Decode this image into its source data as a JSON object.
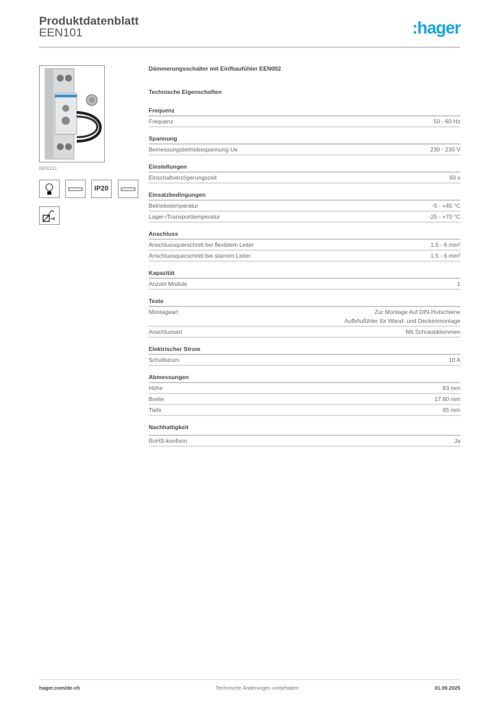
{
  "header": {
    "title": "Produktdatenblatt",
    "subtitle": "EEN101",
    "logo": ":hager",
    "logo_color": "#1aa6e0"
  },
  "product": {
    "image_label": "EEN101",
    "icons": [
      "lamp-icon",
      "din-rail-icon",
      "IP20",
      "din-rail-icon",
      "light-sensor-icon"
    ],
    "ip_rating": "IP20",
    "name": "Dämmerungsschalter mit Einfbaufühler EEN002"
  },
  "specs": {
    "title": "Technische Eigenschaften",
    "sections": [
      {
        "title": "Frequenz",
        "rows": [
          {
            "label": "Frequenz",
            "value": "50 - 60 Hz"
          }
        ]
      },
      {
        "title": "Spannung",
        "rows": [
          {
            "label": "Bemessungsbetriebsspannung Ue",
            "value": "230 - 230 V"
          }
        ]
      },
      {
        "title": "Einstellungen",
        "rows": [
          {
            "label": "Einschaltverzögerungszeit",
            "value": "60 s"
          }
        ]
      },
      {
        "title": "Einsatzbedingungen",
        "rows": [
          {
            "label": "Betriebstemperatur",
            "value": "-5 - +45 °C"
          },
          {
            "label": "Lager-/Transporttemperatur",
            "value": "-25 - +70 °C"
          }
        ]
      },
      {
        "title": "Anschluss",
        "rows": [
          {
            "label": "Anschlussquerschnitt bei flexiblem Leiter",
            "value": "1.5 - 6 mm²"
          },
          {
            "label": "Anschlussquerschnitt bei starrem Leiter",
            "value": "1.5 - 6 mm²"
          }
        ]
      },
      {
        "title": "Kapazität",
        "rows": [
          {
            "label": "Anzahl Module",
            "value": "1"
          }
        ]
      },
      {
        "title": "Texte",
        "rows": [
          {
            "label": "Montageart",
            "value": "Zur Montage Auf DIN-Hutschiene\nAufbAufühler für Wand- und Deckenmontage"
          },
          {
            "label": "Anschlussart",
            "value": "Mit Schraubklemmen"
          }
        ]
      },
      {
        "title": "Elektrischer Strom",
        "rows": [
          {
            "label": "Schaltstrom",
            "value": "10 A"
          }
        ]
      },
      {
        "title": "Abmessungen",
        "rows": [
          {
            "label": "Höhe",
            "value": "83 mm"
          },
          {
            "label": "Breite",
            "value": "17.80 mm"
          },
          {
            "label": "Tiefe",
            "value": "65 mm"
          }
        ]
      },
      {
        "title": "Nachhaltigkeit",
        "rows": [
          {
            "label": "RoHS-konform",
            "value": "Ja"
          }
        ]
      }
    ]
  },
  "footer": {
    "left": "hager.com/de-ch",
    "center": "Technische Änderungen vorbehalten",
    "right": "01.09.2025"
  }
}
